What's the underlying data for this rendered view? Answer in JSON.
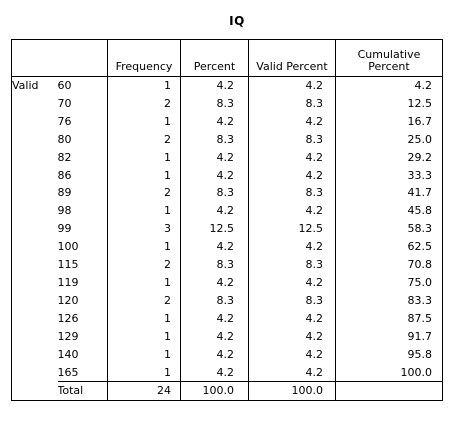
{
  "title": "IQ",
  "headers": {
    "frequency": "Frequency",
    "percent": "Percent",
    "valid_percent": "Valid Percent",
    "cumulative_percent_line1": "Cumulative",
    "cumulative_percent_line2": "Percent"
  },
  "group_label": "Valid",
  "rows": [
    {
      "value": "60",
      "frequency": "1",
      "percent": "4.2",
      "valid_percent": "4.2",
      "cumulative_percent": "4.2"
    },
    {
      "value": "70",
      "frequency": "2",
      "percent": "8.3",
      "valid_percent": "8.3",
      "cumulative_percent": "12.5"
    },
    {
      "value": "76",
      "frequency": "1",
      "percent": "4.2",
      "valid_percent": "4.2",
      "cumulative_percent": "16.7"
    },
    {
      "value": "80",
      "frequency": "2",
      "percent": "8.3",
      "valid_percent": "8.3",
      "cumulative_percent": "25.0"
    },
    {
      "value": "82",
      "frequency": "1",
      "percent": "4.2",
      "valid_percent": "4.2",
      "cumulative_percent": "29.2"
    },
    {
      "value": "86",
      "frequency": "1",
      "percent": "4.2",
      "valid_percent": "4.2",
      "cumulative_percent": "33.3"
    },
    {
      "value": "89",
      "frequency": "2",
      "percent": "8.3",
      "valid_percent": "8.3",
      "cumulative_percent": "41.7"
    },
    {
      "value": "98",
      "frequency": "1",
      "percent": "4.2",
      "valid_percent": "4.2",
      "cumulative_percent": "45.8"
    },
    {
      "value": "99",
      "frequency": "3",
      "percent": "12.5",
      "valid_percent": "12.5",
      "cumulative_percent": "58.3"
    },
    {
      "value": "100",
      "frequency": "1",
      "percent": "4.2",
      "valid_percent": "4.2",
      "cumulative_percent": "62.5"
    },
    {
      "value": "115",
      "frequency": "2",
      "percent": "8.3",
      "valid_percent": "8.3",
      "cumulative_percent": "70.8"
    },
    {
      "value": "119",
      "frequency": "1",
      "percent": "4.2",
      "valid_percent": "4.2",
      "cumulative_percent": "75.0"
    },
    {
      "value": "120",
      "frequency": "2",
      "percent": "8.3",
      "valid_percent": "8.3",
      "cumulative_percent": "83.3"
    },
    {
      "value": "126",
      "frequency": "1",
      "percent": "4.2",
      "valid_percent": "4.2",
      "cumulative_percent": "87.5"
    },
    {
      "value": "129",
      "frequency": "1",
      "percent": "4.2",
      "valid_percent": "4.2",
      "cumulative_percent": "91.7"
    },
    {
      "value": "140",
      "frequency": "1",
      "percent": "4.2",
      "valid_percent": "4.2",
      "cumulative_percent": "95.8"
    },
    {
      "value": "165",
      "frequency": "1",
      "percent": "4.2",
      "valid_percent": "4.2",
      "cumulative_percent": "100.0"
    }
  ],
  "total": {
    "label": "Total",
    "frequency": "24",
    "percent": "100.0",
    "valid_percent": "100.0",
    "cumulative_percent": ""
  }
}
